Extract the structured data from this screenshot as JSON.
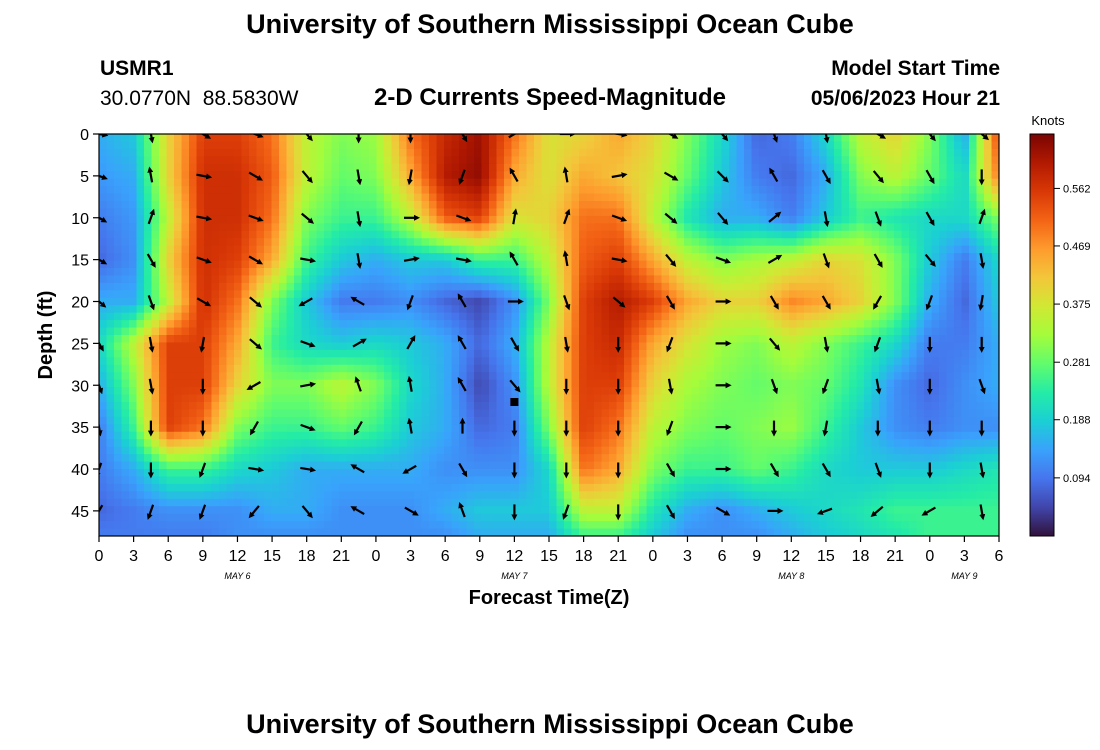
{
  "page": {
    "title": "University of Southern Mississippi Ocean Cube",
    "footer_title": "University of Southern Mississippi Ocean Cube"
  },
  "station": {
    "name": "USMR1",
    "coords": "30.0770N  88.5830W"
  },
  "model": {
    "start_label": "Model Start Time",
    "start_value": "05/06/2023 Hour 21"
  },
  "chart_data": {
    "type": "heatmap",
    "title": "2-D Currents Speed-Magnitude",
    "xlabel": "Forecast Time(Z)",
    "ylabel": "Depth (ft)",
    "x_tick_labels": [
      "0",
      "3",
      "6",
      "9",
      "12",
      "15",
      "18",
      "21",
      "0",
      "3",
      "6",
      "9",
      "12",
      "15",
      "18",
      "21",
      "0",
      "3",
      "6",
      "9",
      "12",
      "15",
      "18",
      "21",
      "0",
      "3",
      "6"
    ],
    "x_tick_hours": [
      0,
      3,
      6,
      9,
      12,
      15,
      18,
      21,
      24,
      27,
      30,
      33,
      36,
      39,
      42,
      45,
      48,
      51,
      54,
      57,
      60,
      63,
      66,
      69,
      72,
      75,
      78
    ],
    "xlim": [
      0,
      78
    ],
    "date_labels": [
      {
        "label": "MAY 6",
        "hour": 12
      },
      {
        "label": "MAY 7",
        "hour": 36
      },
      {
        "label": "MAY 8",
        "hour": 60
      },
      {
        "label": "MAY 9",
        "hour": 75
      }
    ],
    "y_ticks": [
      0,
      5,
      10,
      15,
      20,
      25,
      30,
      35,
      40,
      45
    ],
    "ylim": [
      0,
      48
    ],
    "colorbar": {
      "label": "Knots",
      "ticks": [
        "0.562",
        "0.469",
        "0.375",
        "0.281",
        "0.188",
        "0.094"
      ],
      "tick_values": [
        0.562,
        0.469,
        0.375,
        0.281,
        0.188,
        0.094
      ],
      "min": 0.0,
      "max": 0.65,
      "colors": [
        "#30123b",
        "#4145ab",
        "#4675ed",
        "#39a2fc",
        "#1bcfd4",
        "#24eca6",
        "#61fc6c",
        "#a4fc3b",
        "#d1e834",
        "#f3c63a",
        "#fe9b2d",
        "#f36315",
        "#d93806",
        "#b11901",
        "#7a0403"
      ]
    },
    "speed_grid_hours": [
      0,
      3,
      6,
      9,
      12,
      15,
      18,
      21,
      24,
      27,
      30,
      33,
      36,
      39,
      42,
      45,
      48,
      51,
      54,
      57,
      60,
      63,
      66,
      69,
      72,
      75,
      78
    ],
    "speed_grid_depths": [
      0,
      5,
      10,
      15,
      20,
      25,
      30,
      35,
      40,
      45,
      48
    ],
    "speed_grid": [
      [
        0.15,
        0.18,
        0.4,
        0.55,
        0.55,
        0.5,
        0.35,
        0.3,
        0.32,
        0.5,
        0.58,
        0.62,
        0.5,
        0.38,
        0.4,
        0.45,
        0.4,
        0.3,
        0.2,
        0.08,
        0.1,
        0.2,
        0.35,
        0.4,
        0.3,
        0.15,
        0.55
      ],
      [
        0.13,
        0.15,
        0.4,
        0.57,
        0.57,
        0.52,
        0.35,
        0.28,
        0.3,
        0.45,
        0.6,
        0.63,
        0.45,
        0.38,
        0.45,
        0.42,
        0.38,
        0.28,
        0.18,
        0.1,
        0.08,
        0.15,
        0.3,
        0.35,
        0.28,
        0.2,
        0.5
      ],
      [
        0.1,
        0.13,
        0.35,
        0.57,
        0.57,
        0.5,
        0.3,
        0.25,
        0.25,
        0.35,
        0.52,
        0.55,
        0.38,
        0.4,
        0.5,
        0.5,
        0.35,
        0.22,
        0.15,
        0.15,
        0.1,
        0.18,
        0.25,
        0.22,
        0.2,
        0.2,
        0.3
      ],
      [
        0.08,
        0.12,
        0.4,
        0.57,
        0.55,
        0.45,
        0.25,
        0.18,
        0.15,
        0.18,
        0.18,
        0.25,
        0.25,
        0.35,
        0.52,
        0.55,
        0.45,
        0.35,
        0.3,
        0.33,
        0.35,
        0.4,
        0.38,
        0.3,
        0.18,
        0.1,
        0.2
      ],
      [
        0.15,
        0.15,
        0.35,
        0.57,
        0.5,
        0.3,
        0.18,
        0.1,
        0.1,
        0.12,
        0.08,
        0.05,
        0.12,
        0.3,
        0.55,
        0.6,
        0.55,
        0.45,
        0.4,
        0.4,
        0.48,
        0.45,
        0.4,
        0.3,
        0.15,
        0.08,
        0.18
      ],
      [
        0.2,
        0.35,
        0.55,
        0.55,
        0.45,
        0.25,
        0.2,
        0.18,
        0.2,
        0.18,
        0.15,
        0.08,
        0.15,
        0.35,
        0.55,
        0.58,
        0.45,
        0.38,
        0.32,
        0.3,
        0.35,
        0.3,
        0.25,
        0.2,
        0.1,
        0.1,
        0.15
      ],
      [
        0.15,
        0.3,
        0.55,
        0.55,
        0.4,
        0.3,
        0.3,
        0.35,
        0.3,
        0.2,
        0.15,
        0.05,
        0.12,
        0.35,
        0.55,
        0.55,
        0.4,
        0.33,
        0.3,
        0.28,
        0.3,
        0.28,
        0.22,
        0.12,
        0.08,
        0.12,
        0.15
      ],
      [
        0.1,
        0.25,
        0.55,
        0.5,
        0.3,
        0.25,
        0.25,
        0.28,
        0.25,
        0.18,
        0.15,
        0.08,
        0.1,
        0.3,
        0.55,
        0.5,
        0.35,
        0.3,
        0.28,
        0.3,
        0.32,
        0.25,
        0.18,
        0.12,
        0.1,
        0.12,
        0.12
      ],
      [
        0.1,
        0.15,
        0.25,
        0.25,
        0.2,
        0.18,
        0.15,
        0.15,
        0.15,
        0.15,
        0.12,
        0.12,
        0.12,
        0.2,
        0.5,
        0.45,
        0.3,
        0.25,
        0.25,
        0.28,
        0.25,
        0.2,
        0.18,
        0.18,
        0.18,
        0.2,
        0.22
      ],
      [
        0.08,
        0.1,
        0.12,
        0.12,
        0.12,
        0.15,
        0.15,
        0.12,
        0.12,
        0.12,
        0.15,
        0.18,
        0.18,
        0.18,
        0.35,
        0.35,
        0.22,
        0.15,
        0.12,
        0.15,
        0.18,
        0.2,
        0.22,
        0.25,
        0.25,
        0.25,
        0.25
      ],
      [
        0.1,
        0.1,
        0.1,
        0.1,
        0.12,
        0.12,
        0.12,
        0.12,
        0.12,
        0.12,
        0.12,
        0.15,
        0.15,
        0.15,
        0.25,
        0.25,
        0.18,
        0.12,
        0.12,
        0.12,
        0.15,
        0.18,
        0.2,
        0.22,
        0.25,
        0.25,
        0.25
      ]
    ],
    "vector_hours": [
      0,
      4.5,
      9,
      13.5,
      18,
      22.5,
      27,
      31.5,
      36,
      40.5,
      45,
      49.5,
      54,
      58.5,
      63,
      67.5,
      72,
      76.5
    ],
    "vector_depths": [
      0,
      5,
      10,
      15,
      20,
      25,
      30,
      35,
      40,
      45
    ],
    "vector_angles": [
      [
        100,
        170,
        120,
        110,
        140,
        180,
        180,
        150,
        60,
        90,
        100,
        120,
        140,
        160,
        170,
        120,
        140,
        130
      ],
      [
        110,
        350,
        100,
        120,
        140,
        170,
        190,
        200,
        330,
        350,
        80,
        120,
        135,
        330,
        150,
        140,
        150,
        180
      ],
      [
        120,
        20,
        100,
        110,
        130,
        170,
        90,
        110,
        10,
        20,
        110,
        130,
        140,
        50,
        170,
        160,
        150,
        20
      ],
      [
        120,
        150,
        110,
        120,
        100,
        170,
        80,
        100,
        330,
        350,
        100,
        140,
        110,
        60,
        160,
        150,
        140,
        170
      ],
      [
        130,
        160,
        120,
        130,
        240,
        300,
        200,
        330,
        90,
        160,
        130,
        150,
        90,
        150,
        150,
        210,
        200,
        190
      ],
      [
        150,
        170,
        190,
        130,
        110,
        60,
        30,
        330,
        150,
        170,
        180,
        200,
        90,
        140,
        170,
        200,
        180,
        180
      ],
      [
        160,
        170,
        180,
        240,
        80,
        340,
        350,
        330,
        140,
        180,
        180,
        170,
        90,
        160,
        200,
        170,
        180,
        160
      ],
      [
        170,
        180,
        180,
        210,
        110,
        210,
        350,
        0,
        180,
        180,
        180,
        200,
        90,
        180,
        190,
        180,
        180,
        180
      ],
      [
        200,
        180,
        200,
        100,
        100,
        300,
        240,
        150,
        180,
        180,
        180,
        150,
        90,
        150,
        150,
        160,
        180,
        170
      ],
      [
        210,
        200,
        200,
        220,
        140,
        300,
        120,
        340,
        180,
        200,
        180,
        150,
        120,
        90,
        250,
        230,
        240,
        170
      ]
    ],
    "marker": {
      "hour": 36,
      "depth": 32
    }
  }
}
